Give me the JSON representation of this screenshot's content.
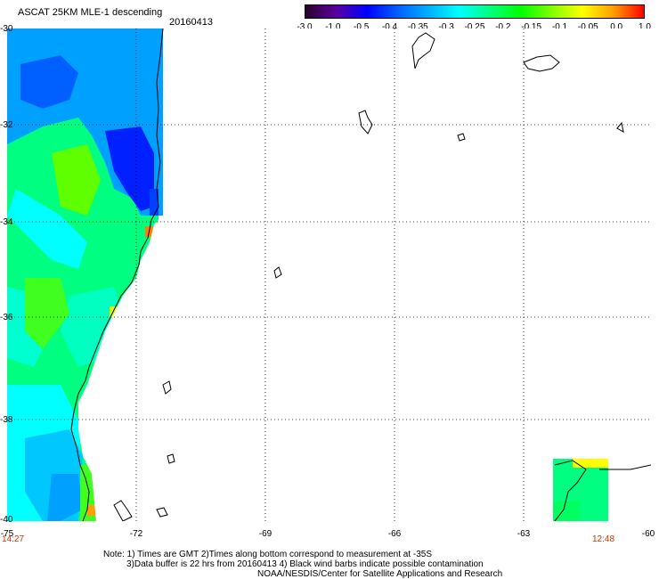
{
  "header": {
    "title": "ASCAT 25KM MLE-1 descending",
    "date": "20160413"
  },
  "colorbar": {
    "labels": [
      "-3.0",
      "-1.0",
      "-0.5",
      "-0.4",
      "-0.35",
      "-0.3",
      "-0.25",
      "-0.2",
      "-0.15",
      "-0.1",
      "-0.05",
      "0.0",
      "1.0"
    ],
    "colors": [
      "#2a002a",
      "#5a00a0",
      "#0000ff",
      "#0060ff",
      "#00b0ff",
      "#00ffff",
      "#00ff80",
      "#00ff00",
      "#80ff00",
      "#ffff00",
      "#ffa000",
      "#ff0000"
    ]
  },
  "axes": {
    "lat_labels": [
      "-30",
      "-32",
      "-34",
      "-36",
      "-38",
      "-40"
    ],
    "lon_labels": [
      "-75",
      "-72",
      "-69",
      "-66",
      "-63",
      "-60"
    ]
  },
  "times": {
    "left": "14:27",
    "right": "12:48"
  },
  "notes": {
    "line1": "Note: 1) Times are GMT 2)Times along bottom correspond to measurement at -35S",
    "line2": "3)Data buffer is 22 hrs from 20160413 4) Black wind barbs indicate possible contamination",
    "line3": "NOAA/NESDIS/Center for Satellite Applications and Research"
  }
}
